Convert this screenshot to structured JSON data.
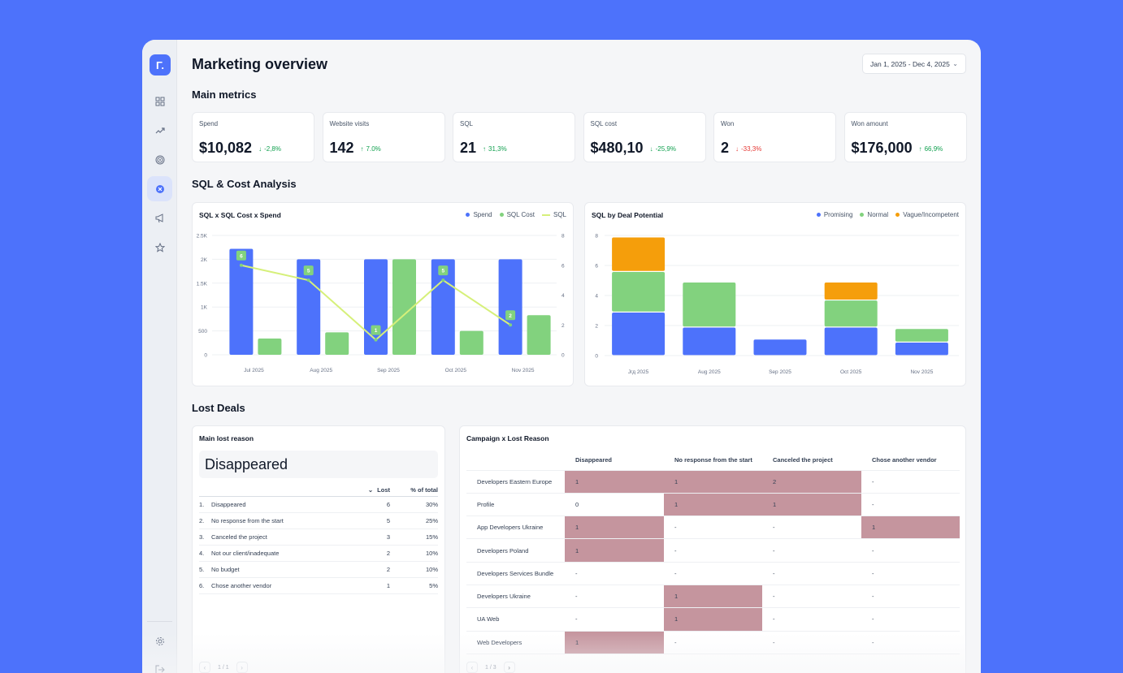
{
  "app": {
    "logo_text": "Γ."
  },
  "sidebar": {
    "items": [
      {
        "name": "dashboard-icon",
        "active": false
      },
      {
        "name": "trend-icon",
        "active": false
      },
      {
        "name": "target-icon",
        "active": false
      },
      {
        "name": "lost-deals-icon",
        "active": true
      },
      {
        "name": "megaphone-icon",
        "active": false
      },
      {
        "name": "star-icon",
        "active": false
      }
    ],
    "bottom": [
      "settings-icon",
      "logout-icon"
    ]
  },
  "header": {
    "title": "Marketing overview",
    "date_range": "Jan 1, 2025 - Dec 4, 2025"
  },
  "sections": {
    "main_metrics": "Main metrics",
    "sql_cost": "SQL & Cost Analysis",
    "lost_deals": "Lost Deals"
  },
  "metrics": [
    {
      "label": "Spend",
      "value": "$10,082",
      "delta": "-2,8%",
      "direction": "down",
      "color": "#12a150",
      "arrow": "↓"
    },
    {
      "label": "Website visits",
      "value": "142",
      "delta": "7.0%",
      "direction": "up",
      "color": "#12a150",
      "arrow": "↑"
    },
    {
      "label": "SQL",
      "value": "21",
      "delta": "31,3%",
      "direction": "up",
      "color": "#12a150",
      "arrow": "↑"
    },
    {
      "label": "SQL cost",
      "value": "$480,10",
      "delta": "-25,9%",
      "direction": "down",
      "color": "#12a150",
      "arrow": "↓"
    },
    {
      "label": "Won",
      "value": "2",
      "delta": "-33,3%",
      "direction": "down",
      "color": "#e53935",
      "arrow": "↓"
    },
    {
      "label": "Won amount",
      "value": "$176,000",
      "delta": "66,9%",
      "direction": "up",
      "color": "#12a150",
      "arrow": "↑"
    }
  ],
  "colors": {
    "spend": "#4d72fb",
    "sql_cost": "#82d27e",
    "sql": "#d6f07a",
    "promising": "#4d72fb",
    "normal": "#82d27e",
    "vague": "#f59e0b",
    "highlight": "#c5959e"
  },
  "chart_data": [
    {
      "type": "bar",
      "title": "SQL x SQL Cost x Spend",
      "categories": [
        "Jul 2025",
        "Aug 2025",
        "Sep 2025",
        "Oct 2025",
        "Nov 2025"
      ],
      "series": [
        {
          "name": "Spend",
          "type": "bar",
          "axis": "left",
          "values": [
            2220,
            2000,
            2000,
            2000,
            2000
          ]
        },
        {
          "name": "SQL Cost",
          "type": "bar",
          "axis": "left",
          "values": [
            340,
            470,
            2000,
            500,
            830
          ]
        },
        {
          "name": "SQL",
          "type": "line",
          "axis": "right",
          "values": [
            6,
            5,
            1,
            5,
            2
          ]
        }
      ],
      "y_ticks_left": [
        "0",
        "500",
        "1K",
        "1.5K",
        "2K",
        "2.5K"
      ],
      "y_ticks_right": [
        "0",
        "2",
        "4",
        "6",
        "8"
      ],
      "ylim_left": [
        0,
        2500
      ],
      "ylim_right": [
        0,
        8
      ],
      "legend_position": "top-right",
      "grid": true
    },
    {
      "type": "bar",
      "stacked": true,
      "title": "SQL by Deal Potential",
      "categories": [
        "Jгд 2025",
        "Aug 2025",
        "Sep 2025",
        "Oct 2025",
        "Nov 2025"
      ],
      "series": [
        {
          "name": "Promising",
          "values": [
            2.9,
            1.9,
            1.1,
            1.9,
            0.9
          ]
        },
        {
          "name": "Normal",
          "values": [
            2.7,
            3.0,
            0,
            1.8,
            0.9
          ]
        },
        {
          "name": "Vague/Incompetent",
          "values": [
            2.3,
            0,
            0,
            1.2,
            0
          ]
        }
      ],
      "y_ticks": [
        "0",
        "2",
        "4",
        "6",
        "8"
      ],
      "ylim": [
        0,
        8
      ],
      "legend_position": "top-right",
      "grid": true
    }
  ],
  "lost_reason": {
    "title": "Main lost reason",
    "top_reason": "Disappeared",
    "col_lost": "Lost",
    "col_pct": "% of total",
    "rows": [
      {
        "idx": "1.",
        "reason": "Disappeared",
        "lost": "6",
        "pct": "30%"
      },
      {
        "idx": "2.",
        "reason": "No response from the start",
        "lost": "5",
        "pct": "25%"
      },
      {
        "idx": "3.",
        "reason": "Canceled the project",
        "lost": "3",
        "pct": "15%"
      },
      {
        "idx": "4.",
        "reason": "Not our client/inadequate",
        "lost": "2",
        "pct": "10%"
      },
      {
        "idx": "5.",
        "reason": "No budget",
        "lost": "2",
        "pct": "10%"
      },
      {
        "idx": "6.",
        "reason": "Chose another vendor",
        "lost": "1",
        "pct": "5%"
      }
    ],
    "pager": "1 / 1"
  },
  "campaign_lost": {
    "title": "Campaign x Lost Reason",
    "columns": [
      "Disappeared",
      "No response from the start",
      "Canceled the project",
      "Chose another vendor"
    ],
    "rows": [
      {
        "campaign": "Developers Eastern Europe",
        "cells": [
          "1",
          "1",
          "2",
          "-"
        ],
        "hl": [
          true,
          true,
          true,
          false
        ]
      },
      {
        "campaign": "Profile",
        "cells": [
          "0",
          "1",
          "1",
          "-"
        ],
        "hl": [
          false,
          true,
          true,
          false
        ]
      },
      {
        "campaign": "App Developers Ukraine",
        "cells": [
          "1",
          "-",
          "-",
          "1"
        ],
        "hl": [
          true,
          false,
          false,
          true
        ]
      },
      {
        "campaign": "Developers Poland",
        "cells": [
          "1",
          "-",
          "-",
          "-"
        ],
        "hl": [
          true,
          false,
          false,
          false
        ]
      },
      {
        "campaign": "Developers Services Bundle",
        "cells": [
          "-",
          "-",
          "-",
          "-"
        ],
        "hl": [
          false,
          false,
          false,
          false
        ]
      },
      {
        "campaign": "Developers Ukraine",
        "cells": [
          "-",
          "1",
          "-",
          "-"
        ],
        "hl": [
          false,
          true,
          false,
          false
        ]
      },
      {
        "campaign": "UA Web",
        "cells": [
          "-",
          "1",
          "-",
          "-"
        ],
        "hl": [
          false,
          true,
          false,
          false
        ]
      },
      {
        "campaign": "Web Developers",
        "cells": [
          "1",
          "-",
          "-",
          "-"
        ],
        "hl": [
          true,
          false,
          false,
          false
        ]
      }
    ],
    "pager": "1 / 3"
  }
}
